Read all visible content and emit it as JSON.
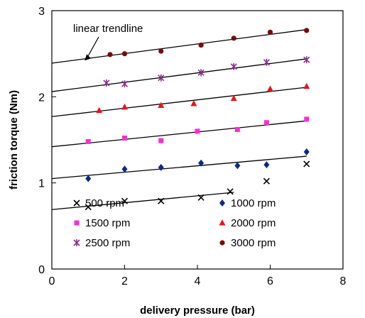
{
  "chart_data": {
    "type": "scatter",
    "title": "",
    "xlabel": "delivery pressure (bar)",
    "ylabel": "friction torque (Nm)",
    "xlim": [
      0,
      8
    ],
    "ylim": [
      0,
      3
    ],
    "xticks": [
      0,
      2,
      4,
      6,
      8
    ],
    "yticks": [
      0,
      1,
      2,
      3
    ],
    "grid": false,
    "legend_position": "bottom-right",
    "annotation": {
      "text": "linear trendline",
      "arrow_to": [
        0.9,
        2.42
      ]
    },
    "series": [
      {
        "name": "500 rpm",
        "marker": "x",
        "color": "#000000",
        "x": [
          1.0,
          2.0,
          3.0,
          4.1,
          4.9,
          5.9,
          7.0
        ],
        "y": [
          0.72,
          0.79,
          0.79,
          0.83,
          0.9,
          1.02,
          1.22
        ],
        "trendline": {
          "x": [
            0.0,
            5.0
          ],
          "y": [
            0.69,
            0.89
          ]
        }
      },
      {
        "name": "1000 rpm",
        "marker": "diamond",
        "color": "#0b2a88",
        "x": [
          1.0,
          2.0,
          3.0,
          4.1,
          5.1,
          5.9,
          7.0
        ],
        "y": [
          1.05,
          1.16,
          1.18,
          1.23,
          1.2,
          1.21,
          1.36
        ],
        "trendline": {
          "x": [
            0.0,
            7.0
          ],
          "y": [
            1.05,
            1.31
          ]
        }
      },
      {
        "name": "1500 rpm",
        "marker": "square",
        "color": "#ff2bd6",
        "x": [
          1.0,
          2.0,
          3.0,
          4.0,
          5.1,
          5.9,
          7.0
        ],
        "y": [
          1.48,
          1.52,
          1.49,
          1.6,
          1.62,
          1.7,
          1.74
        ],
        "trendline": {
          "x": [
            0.0,
            7.0
          ],
          "y": [
            1.42,
            1.72
          ]
        }
      },
      {
        "name": "2000 rpm",
        "marker": "triangle",
        "color": "#e8141c",
        "x": [
          1.3,
          2.0,
          3.0,
          3.9,
          5.0,
          6.0,
          7.0
        ],
        "y": [
          1.84,
          1.88,
          1.9,
          1.92,
          1.98,
          2.09,
          2.12
        ],
        "trendline": {
          "x": [
            0.0,
            7.0
          ],
          "y": [
            1.77,
            2.11
          ]
        }
      },
      {
        "name": "2500 rpm",
        "marker": "star",
        "color": "#8c2a8c",
        "x": [
          1.5,
          2.0,
          3.0,
          4.1,
          5.0,
          5.9,
          7.0
        ],
        "y": [
          2.16,
          2.15,
          2.22,
          2.28,
          2.35,
          2.4,
          2.43
        ],
        "trendline": {
          "x": [
            0.0,
            7.0
          ],
          "y": [
            2.06,
            2.44
          ]
        }
      },
      {
        "name": "3000 rpm",
        "marker": "circle",
        "color": "#7a0a0a",
        "x": [
          1.6,
          2.0,
          3.0,
          4.1,
          5.0,
          6.0,
          7.0
        ],
        "y": [
          2.49,
          2.5,
          2.53,
          2.6,
          2.68,
          2.75,
          2.77
        ],
        "trendline": {
          "x": [
            0.0,
            7.0
          ],
          "y": [
            2.39,
            2.78
          ]
        }
      }
    ]
  }
}
